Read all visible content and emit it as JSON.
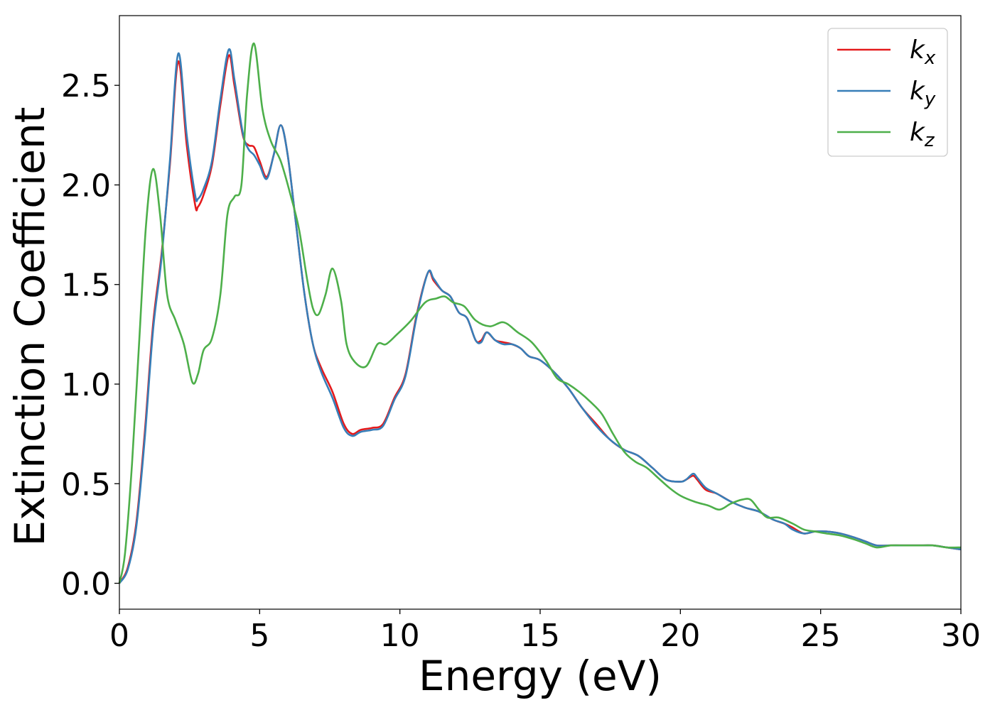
{
  "chart_data": {
    "type": "line",
    "title": "",
    "xlabel": "Energy (eV)",
    "ylabel": "Extinction Coefficient",
    "xlim": [
      0,
      30
    ],
    "ylim": [
      -0.13,
      2.85
    ],
    "xticks": [
      0,
      5,
      10,
      15,
      20,
      25,
      30
    ],
    "xtick_labels": [
      "0",
      "5",
      "10",
      "15",
      "20",
      "25",
      "30"
    ],
    "yticks": [
      0.0,
      0.5,
      1.0,
      1.5,
      2.0,
      2.5
    ],
    "ytick_labels": [
      "0.0",
      "0.5",
      "1.0",
      "1.5",
      "2.0",
      "2.5"
    ],
    "grid": false,
    "legend_position": "top-right",
    "series": [
      {
        "name": "kx",
        "label_base": "k",
        "label_sub": "x",
        "color": "#e41a1c",
        "points": [
          [
            0,
            0
          ],
          [
            0.3,
            0.08
          ],
          [
            0.6,
            0.3
          ],
          [
            0.9,
            0.75
          ],
          [
            1.2,
            1.3
          ],
          [
            1.5,
            1.65
          ],
          [
            1.8,
            2.1
          ],
          [
            2.1,
            2.62
          ],
          [
            2.4,
            2.2
          ],
          [
            2.7,
            1.9
          ],
          [
            2.8,
            1.89
          ],
          [
            3.0,
            1.95
          ],
          [
            3.3,
            2.1
          ],
          [
            3.6,
            2.4
          ],
          [
            3.9,
            2.65
          ],
          [
            4.1,
            2.5
          ],
          [
            4.4,
            2.25
          ],
          [
            4.6,
            2.2
          ],
          [
            4.8,
            2.19
          ],
          [
            5.0,
            2.12
          ],
          [
            5.25,
            2.04
          ],
          [
            5.5,
            2.15
          ],
          [
            5.75,
            2.3
          ],
          [
            6.0,
            2.15
          ],
          [
            6.3,
            1.8
          ],
          [
            6.6,
            1.45
          ],
          [
            6.9,
            1.2
          ],
          [
            7.2,
            1.08
          ],
          [
            7.6,
            0.96
          ],
          [
            8.0,
            0.8
          ],
          [
            8.3,
            0.75
          ],
          [
            8.6,
            0.77
          ],
          [
            9.0,
            0.78
          ],
          [
            9.4,
            0.8
          ],
          [
            9.8,
            0.93
          ],
          [
            10.2,
            1.05
          ],
          [
            10.6,
            1.35
          ],
          [
            11.0,
            1.56
          ],
          [
            11.2,
            1.52
          ],
          [
            11.5,
            1.47
          ],
          [
            11.8,
            1.44
          ],
          [
            12.1,
            1.36
          ],
          [
            12.4,
            1.33
          ],
          [
            12.7,
            1.22
          ],
          [
            12.9,
            1.22
          ],
          [
            13.1,
            1.26
          ],
          [
            13.4,
            1.22
          ],
          [
            13.7,
            1.21
          ],
          [
            14.0,
            1.2
          ],
          [
            14.3,
            1.18
          ],
          [
            14.6,
            1.14
          ],
          [
            15.0,
            1.12
          ],
          [
            15.5,
            1.06
          ],
          [
            16.0,
            0.98
          ],
          [
            16.5,
            0.88
          ],
          [
            17.0,
            0.8
          ],
          [
            17.5,
            0.72
          ],
          [
            18.0,
            0.67
          ],
          [
            18.5,
            0.64
          ],
          [
            19.0,
            0.58
          ],
          [
            19.5,
            0.52
          ],
          [
            20.0,
            0.51
          ],
          [
            20.2,
            0.52
          ],
          [
            20.45,
            0.54
          ],
          [
            20.6,
            0.52
          ],
          [
            20.9,
            0.47
          ],
          [
            21.3,
            0.45
          ],
          [
            21.8,
            0.41
          ],
          [
            22.3,
            0.38
          ],
          [
            22.8,
            0.36
          ],
          [
            23.3,
            0.32
          ],
          [
            23.7,
            0.3
          ],
          [
            24.0,
            0.28
          ],
          [
            24.4,
            0.25
          ],
          [
            24.8,
            0.26
          ],
          [
            25.2,
            0.26
          ],
          [
            25.7,
            0.25
          ],
          [
            26.2,
            0.23
          ],
          [
            26.6,
            0.21
          ],
          [
            27.0,
            0.19
          ],
          [
            27.5,
            0.19
          ],
          [
            28.0,
            0.19
          ],
          [
            28.5,
            0.19
          ],
          [
            29.0,
            0.19
          ],
          [
            29.5,
            0.18
          ],
          [
            30.0,
            0.17
          ]
        ]
      },
      {
        "name": "ky",
        "label_base": "k",
        "label_sub": "y",
        "color": "#377eb8",
        "points": [
          [
            0,
            0
          ],
          [
            0.3,
            0.07
          ],
          [
            0.6,
            0.28
          ],
          [
            0.9,
            0.72
          ],
          [
            1.2,
            1.27
          ],
          [
            1.5,
            1.63
          ],
          [
            1.8,
            2.12
          ],
          [
            2.1,
            2.66
          ],
          [
            2.4,
            2.25
          ],
          [
            2.7,
            1.95
          ],
          [
            2.8,
            1.93
          ],
          [
            3.0,
            1.98
          ],
          [
            3.3,
            2.12
          ],
          [
            3.6,
            2.43
          ],
          [
            3.9,
            2.68
          ],
          [
            4.1,
            2.53
          ],
          [
            4.4,
            2.26
          ],
          [
            4.6,
            2.18
          ],
          [
            4.8,
            2.15
          ],
          [
            5.0,
            2.1
          ],
          [
            5.25,
            2.03
          ],
          [
            5.5,
            2.15
          ],
          [
            5.75,
            2.3
          ],
          [
            6.0,
            2.15
          ],
          [
            6.3,
            1.8
          ],
          [
            6.6,
            1.45
          ],
          [
            6.9,
            1.2
          ],
          [
            7.2,
            1.06
          ],
          [
            7.6,
            0.93
          ],
          [
            8.0,
            0.78
          ],
          [
            8.3,
            0.74
          ],
          [
            8.6,
            0.76
          ],
          [
            9.0,
            0.77
          ],
          [
            9.4,
            0.79
          ],
          [
            9.8,
            0.92
          ],
          [
            10.2,
            1.04
          ],
          [
            10.6,
            1.34
          ],
          [
            11.0,
            1.56
          ],
          [
            11.2,
            1.53
          ],
          [
            11.5,
            1.47
          ],
          [
            11.8,
            1.44
          ],
          [
            12.1,
            1.36
          ],
          [
            12.4,
            1.33
          ],
          [
            12.7,
            1.22
          ],
          [
            12.9,
            1.21
          ],
          [
            13.1,
            1.26
          ],
          [
            13.4,
            1.22
          ],
          [
            13.7,
            1.2
          ],
          [
            14.0,
            1.2
          ],
          [
            14.3,
            1.18
          ],
          [
            14.6,
            1.14
          ],
          [
            15.0,
            1.12
          ],
          [
            15.5,
            1.06
          ],
          [
            16.0,
            0.98
          ],
          [
            16.5,
            0.88
          ],
          [
            17.0,
            0.79
          ],
          [
            17.5,
            0.72
          ],
          [
            18.0,
            0.67
          ],
          [
            18.5,
            0.64
          ],
          [
            19.0,
            0.58
          ],
          [
            19.5,
            0.52
          ],
          [
            20.0,
            0.51
          ],
          [
            20.2,
            0.52
          ],
          [
            20.45,
            0.55
          ],
          [
            20.6,
            0.53
          ],
          [
            20.9,
            0.48
          ],
          [
            21.3,
            0.45
          ],
          [
            21.8,
            0.41
          ],
          [
            22.3,
            0.38
          ],
          [
            22.8,
            0.36
          ],
          [
            23.3,
            0.32
          ],
          [
            23.7,
            0.3
          ],
          [
            24.0,
            0.27
          ],
          [
            24.4,
            0.25
          ],
          [
            24.8,
            0.26
          ],
          [
            25.2,
            0.26
          ],
          [
            25.7,
            0.25
          ],
          [
            26.2,
            0.23
          ],
          [
            26.6,
            0.21
          ],
          [
            27.0,
            0.19
          ],
          [
            27.5,
            0.19
          ],
          [
            28.0,
            0.19
          ],
          [
            28.5,
            0.19
          ],
          [
            29.0,
            0.19
          ],
          [
            29.5,
            0.18
          ],
          [
            30.0,
            0.17
          ]
        ]
      },
      {
        "name": "kz",
        "label_base": "k",
        "label_sub": "z",
        "color": "#4daf4a",
        "points": [
          [
            0,
            0
          ],
          [
            0.2,
            0.15
          ],
          [
            0.45,
            0.6
          ],
          [
            0.7,
            1.2
          ],
          [
            0.95,
            1.8
          ],
          [
            1.2,
            2.08
          ],
          [
            1.45,
            1.85
          ],
          [
            1.7,
            1.45
          ],
          [
            2.0,
            1.32
          ],
          [
            2.3,
            1.2
          ],
          [
            2.6,
            1.01
          ],
          [
            2.8,
            1.05
          ],
          [
            3.0,
            1.17
          ],
          [
            3.3,
            1.23
          ],
          [
            3.6,
            1.45
          ],
          [
            3.85,
            1.85
          ],
          [
            4.1,
            1.94
          ],
          [
            4.35,
            2.0
          ],
          [
            4.55,
            2.45
          ],
          [
            4.8,
            2.71
          ],
          [
            5.1,
            2.38
          ],
          [
            5.4,
            2.22
          ],
          [
            5.75,
            2.12
          ],
          [
            6.1,
            1.95
          ],
          [
            6.4,
            1.78
          ],
          [
            6.7,
            1.52
          ],
          [
            6.9,
            1.38
          ],
          [
            7.1,
            1.35
          ],
          [
            7.35,
            1.45
          ],
          [
            7.6,
            1.58
          ],
          [
            7.9,
            1.42
          ],
          [
            8.1,
            1.2
          ],
          [
            8.4,
            1.11
          ],
          [
            8.8,
            1.09
          ],
          [
            9.2,
            1.2
          ],
          [
            9.5,
            1.2
          ],
          [
            9.9,
            1.25
          ],
          [
            10.4,
            1.32
          ],
          [
            10.9,
            1.41
          ],
          [
            11.3,
            1.43
          ],
          [
            11.6,
            1.44
          ],
          [
            11.9,
            1.41
          ],
          [
            12.3,
            1.39
          ],
          [
            12.7,
            1.32
          ],
          [
            13.2,
            1.29
          ],
          [
            13.7,
            1.31
          ],
          [
            14.2,
            1.26
          ],
          [
            14.7,
            1.21
          ],
          [
            15.2,
            1.12
          ],
          [
            15.6,
            1.03
          ],
          [
            16.0,
            1.0
          ],
          [
            16.4,
            0.96
          ],
          [
            16.8,
            0.91
          ],
          [
            17.2,
            0.85
          ],
          [
            17.6,
            0.75
          ],
          [
            18.0,
            0.66
          ],
          [
            18.4,
            0.61
          ],
          [
            18.8,
            0.58
          ],
          [
            19.2,
            0.53
          ],
          [
            19.6,
            0.48
          ],
          [
            20.0,
            0.44
          ],
          [
            20.5,
            0.41
          ],
          [
            21.0,
            0.39
          ],
          [
            21.4,
            0.37
          ],
          [
            21.8,
            0.4
          ],
          [
            22.2,
            0.42
          ],
          [
            22.5,
            0.42
          ],
          [
            22.8,
            0.37
          ],
          [
            23.1,
            0.33
          ],
          [
            23.5,
            0.33
          ],
          [
            24.0,
            0.3
          ],
          [
            24.4,
            0.27
          ],
          [
            24.8,
            0.26
          ],
          [
            25.2,
            0.25
          ],
          [
            25.7,
            0.24
          ],
          [
            26.2,
            0.22
          ],
          [
            26.6,
            0.2
          ],
          [
            27.0,
            0.18
          ],
          [
            27.5,
            0.19
          ],
          [
            28.0,
            0.19
          ],
          [
            28.5,
            0.19
          ],
          [
            29.0,
            0.19
          ],
          [
            29.5,
            0.18
          ],
          [
            30.0,
            0.18
          ]
        ]
      }
    ]
  }
}
